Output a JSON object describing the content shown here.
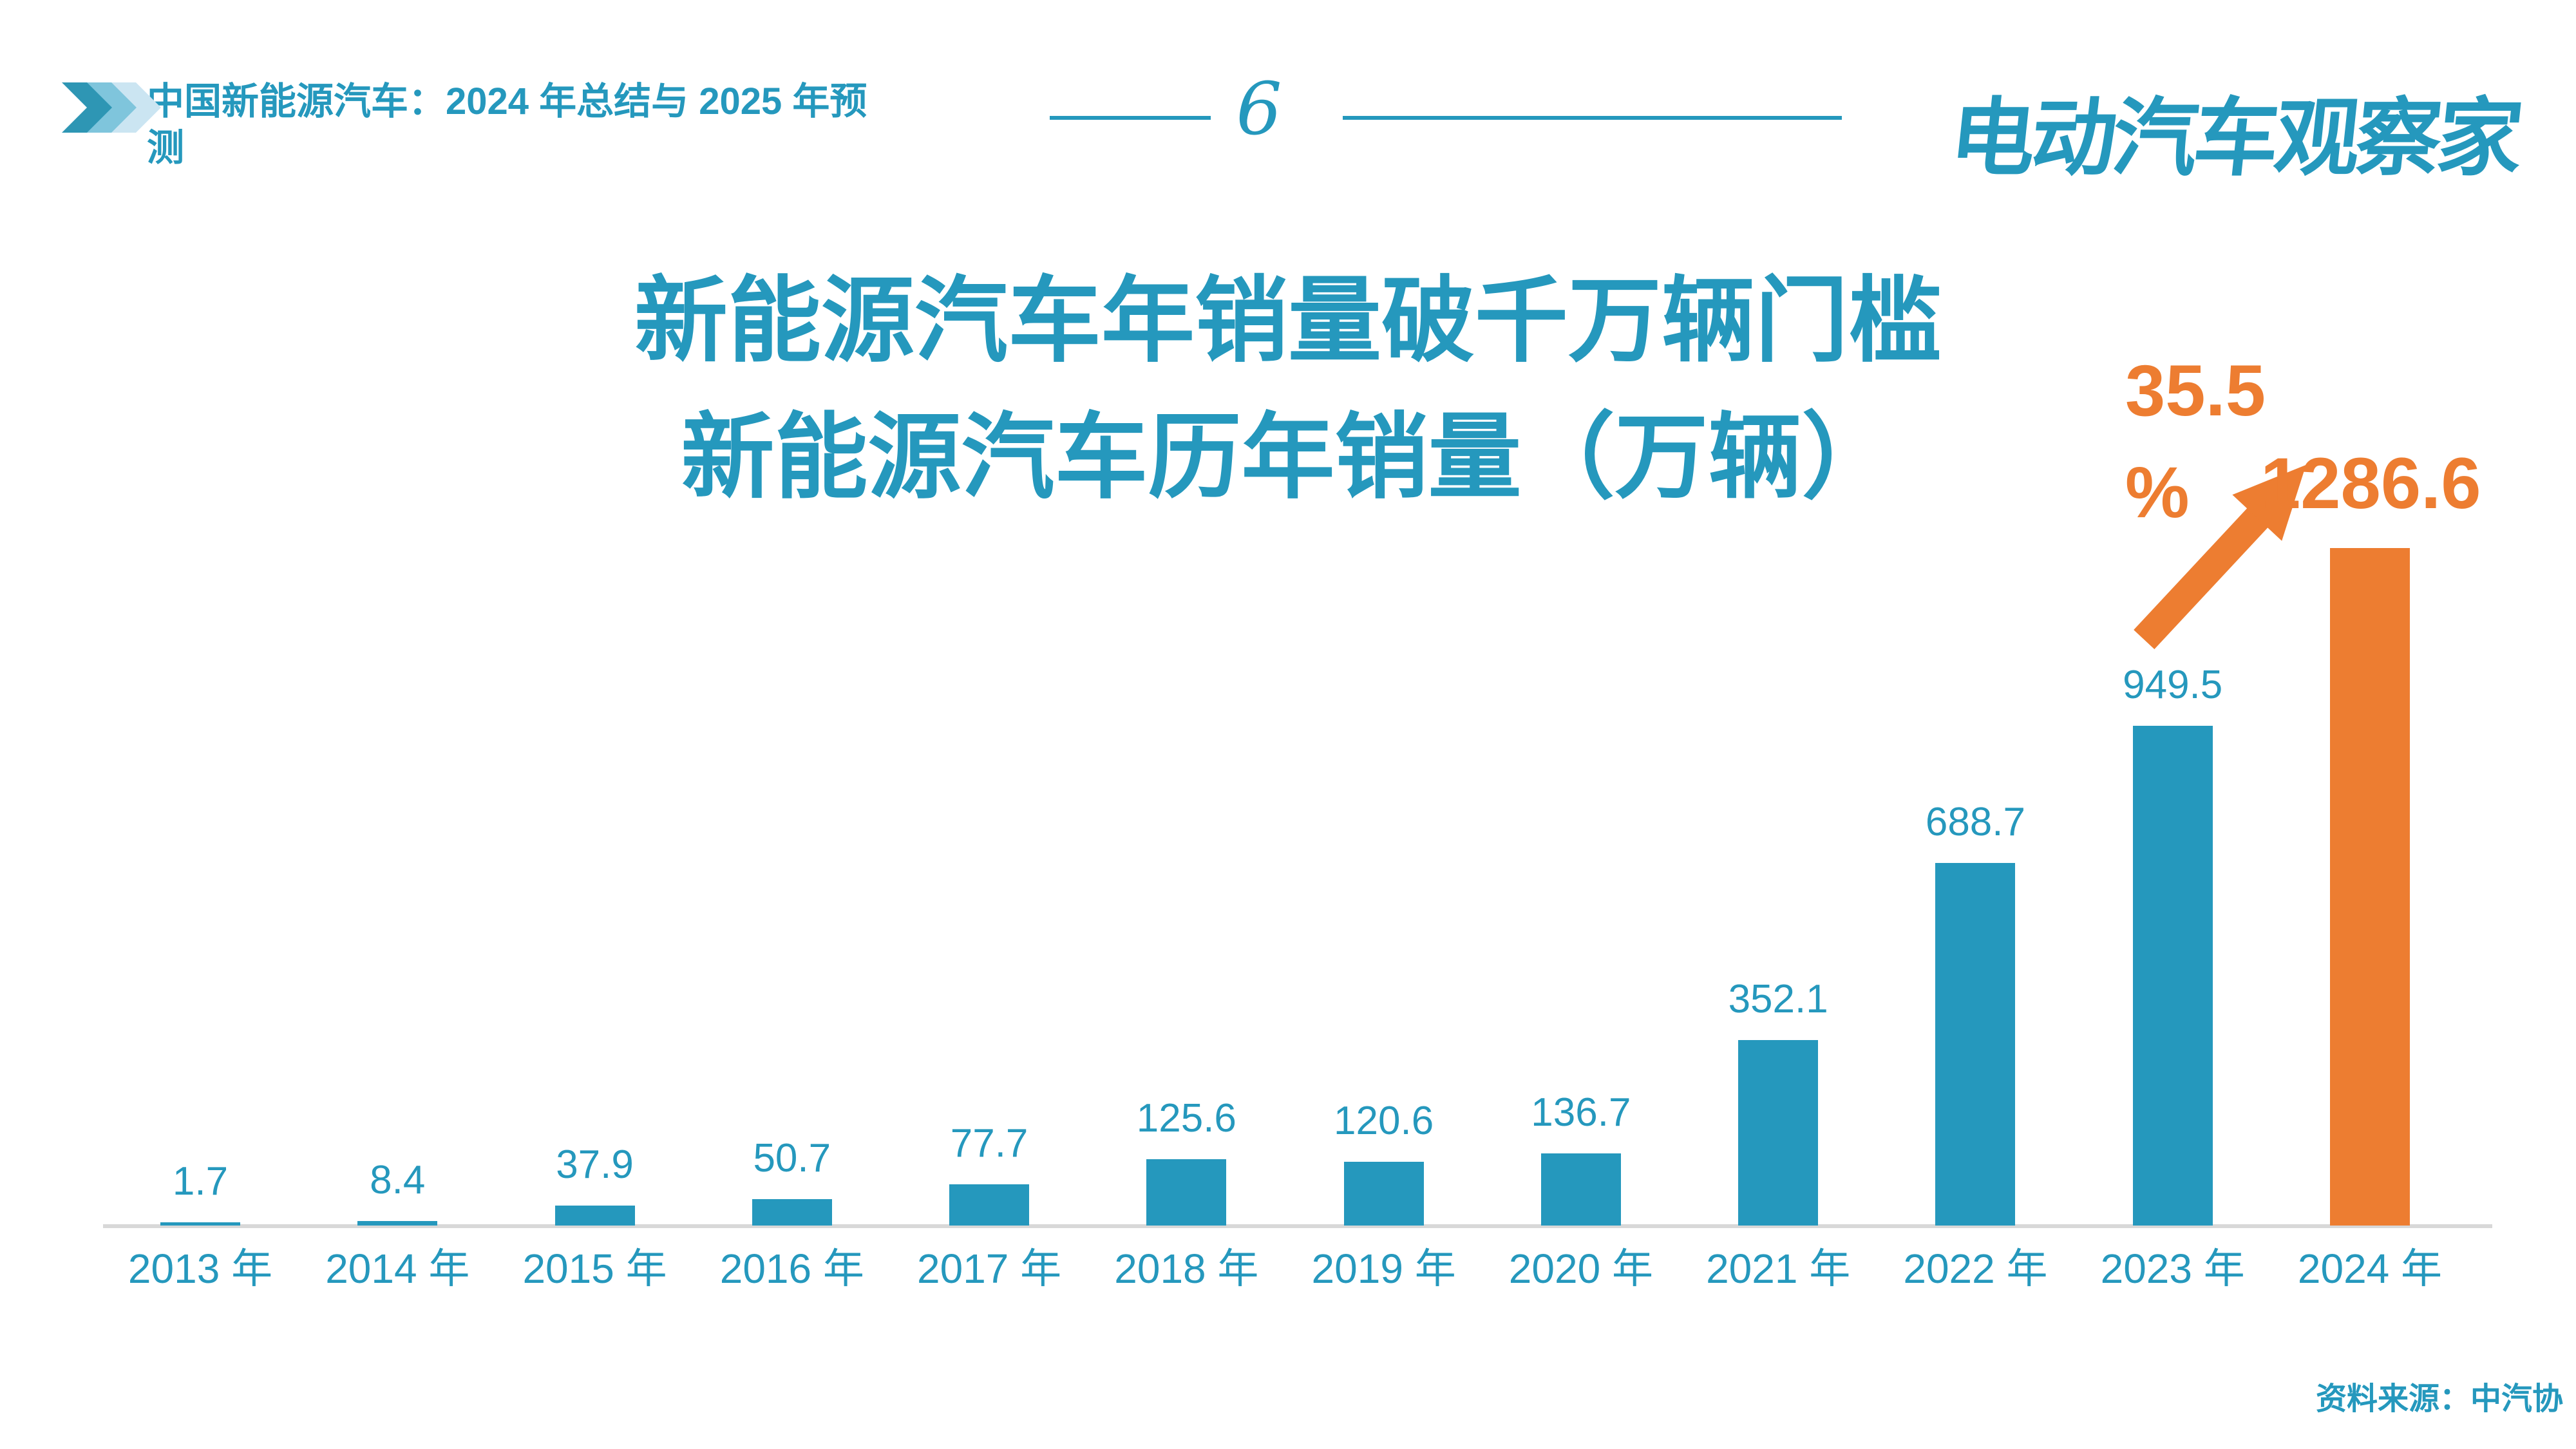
{
  "colors": {
    "teal": "#2598BD",
    "orange": "#ED7D31",
    "axis_gray": "#D8D8D8",
    "chevron_dark": "#2E96B4",
    "chevron_medium": "#7FC5DC",
    "chevron_light": "#CBE5F2"
  },
  "header": {
    "title_line1": "中国新能源汽车：2024 年总结与 2025 年预",
    "title_line2": "测",
    "page_number": "6",
    "logo": "电动汽车观察家"
  },
  "chart_data": {
    "type": "bar",
    "title_line1": "新能源汽车年销量破千万辆门槛",
    "title_line2": "新能源汽车历年销量（万辆）",
    "categories": [
      "2013 年",
      "2014 年",
      "2015 年",
      "2016 年",
      "2017 年",
      "2018 年",
      "2019 年",
      "2020 年",
      "2021 年",
      "2022 年",
      "2023 年",
      "2024 年"
    ],
    "values": [
      1.7,
      8.4,
      37.9,
      50.7,
      77.7,
      125.6,
      120.6,
      136.7,
      352.1,
      688.7,
      949.5,
      1286.6
    ],
    "highlight_index": 11,
    "ylim": [
      0,
      1286.6
    ],
    "grid": false,
    "legend": false,
    "annotation": {
      "growth_text": "35.5%",
      "growth_line1": "35.5",
      "growth_line2": "%"
    }
  },
  "footer": {
    "source": "资料来源：中汽协"
  }
}
